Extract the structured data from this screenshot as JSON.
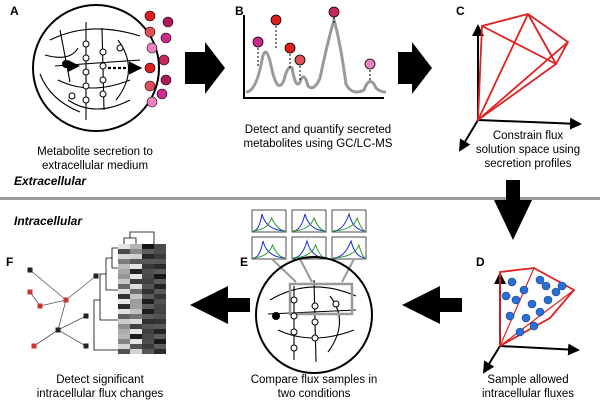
{
  "panels": {
    "a": {
      "letter": "A",
      "caption_lines": [
        "Metabolite secretion to",
        "extracellular medium"
      ]
    },
    "b": {
      "letter": "B",
      "caption_lines": [
        "Detect and quantify secreted",
        "metabolites using GC/LC-MS"
      ]
    },
    "c": {
      "letter": "C",
      "caption_lines": [
        "Constrain flux",
        "solution space using",
        "secretion profiles"
      ]
    },
    "d": {
      "letter": "D",
      "caption_lines": [
        "Sample allowed",
        "intracellular fluxes"
      ]
    },
    "e": {
      "letter": "E",
      "caption_lines": [
        "Compare flux samples in",
        "two conditions"
      ]
    },
    "f": {
      "letter": "F",
      "caption_lines": [
        "Detect significant",
        "intracellular flux changes"
      ]
    }
  },
  "sections": {
    "extracellular": "Extracellular",
    "intracellular": "Intracellular"
  },
  "colors": {
    "metabolite_dots": [
      "#dc1e1e",
      "#b0185e",
      "#e0505a",
      "#cc2b8c",
      "#f080c0",
      "#c8285a"
    ],
    "polytope": "#dd2222",
    "samples": "#2a6fd6",
    "hist_blue": "#1a2bd9",
    "hist_green": "#2a9a2a",
    "divider": "#9a9a9a"
  }
}
